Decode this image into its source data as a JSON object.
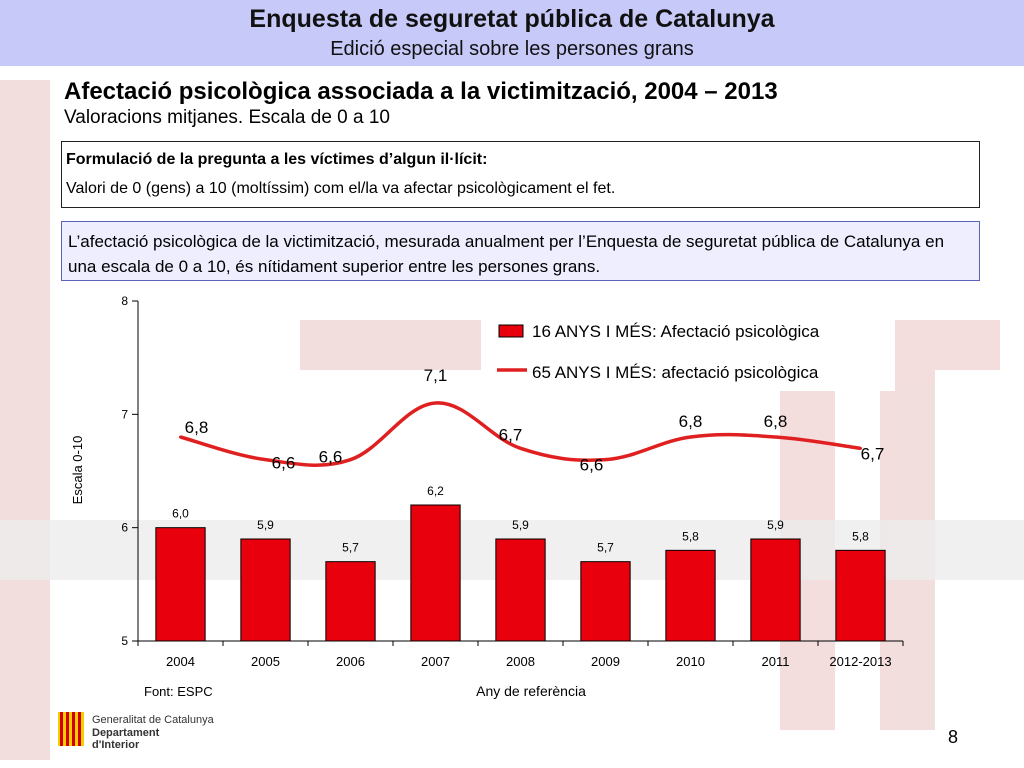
{
  "header": {
    "title": "Enquesta de seguretat pública de Catalunya",
    "subtitle": "Edició especial sobre les persones grans"
  },
  "slide": {
    "title": "Afectació psicològica associada a la victimització, 2004 – 2013",
    "subtitle": "Valoracions mitjanes. Escala de 0 a 10"
  },
  "question_box": {
    "title": "Formulació de la pregunta a les víctimes d’algun il·lícit:",
    "text": "Valori de 0 (gens) a 10 (moltíssim) com el/la va afectar psicològicament el fet."
  },
  "note": {
    "text": "L’afectació psicològica de la victimització, mesurada anualment per l’Enquesta de seguretat pública de Catalunya en una escala de 0 a 10, és nítidament superior entre les persones grans."
  },
  "chart_data": {
    "type": "bar",
    "categories": [
      "2004",
      "2005",
      "2006",
      "2007",
      "2008",
      "2009",
      "2010",
      "2011",
      "2012-2013"
    ],
    "series": [
      {
        "name": "16 ANYS I MÉS: Afectació psicològica",
        "kind": "bar",
        "color": "#e8000d",
        "values": [
          6.0,
          5.9,
          5.7,
          6.2,
          5.9,
          5.7,
          5.8,
          5.9,
          5.8
        ],
        "labels": [
          "6,0",
          "5,9",
          "5,7",
          "6,2",
          "5,9",
          "5,7",
          "5,8",
          "5,9",
          "5,8"
        ]
      },
      {
        "name": "65 ANYS I MÉS: afectació psicològica",
        "kind": "line",
        "color": "#e02020",
        "values": [
          6.8,
          6.6,
          6.6,
          7.1,
          6.7,
          6.6,
          6.8,
          6.8,
          6.7
        ],
        "labels": [
          "6,8",
          "6,6",
          "6,6",
          "7,1",
          "6,7",
          "6,6",
          "6,8",
          "6,8",
          "6,7"
        ]
      }
    ],
    "ylabel": "Escala 0-10",
    "xlabel": "Any de referència",
    "ylim": [
      5,
      8
    ],
    "yticks": [
      "5",
      "6",
      "7",
      "8"
    ],
    "grid": false,
    "legend": "top-right"
  },
  "source": "Font: ESPC",
  "footer": {
    "logo_lines": [
      "Generalitat de Catalunya",
      "Departament",
      "d'Interior"
    ],
    "page_number": "8"
  }
}
